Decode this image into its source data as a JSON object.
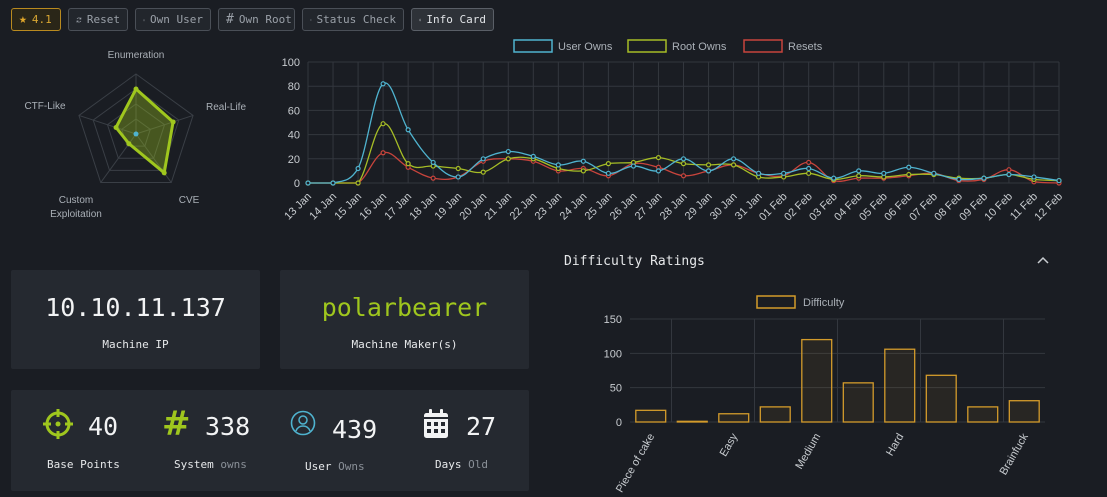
{
  "toolbar": {
    "rating": "4.1",
    "buttons": [
      {
        "label": "Reset",
        "icon": "refresh-icon"
      },
      {
        "label": "Own User",
        "icon": "user-icon"
      },
      {
        "label": "Own Root",
        "icon": "hash-icon"
      },
      {
        "label": "Status Check",
        "icon": "server-icon"
      },
      {
        "label": "Info Card",
        "icon": "info-icon",
        "active": true
      }
    ]
  },
  "radar": {
    "axes": [
      "Enumeration",
      "Real-Life",
      "CVE",
      "Custom Exploitation",
      "CTF-Like"
    ],
    "axis_lines": [
      [
        "Enumeration"
      ],
      [
        "Real-Life"
      ],
      [
        "CVE"
      ],
      [
        "Custom",
        "Exploitation"
      ],
      [
        "CTF-Like"
      ]
    ],
    "values": [
      0.75,
      0.65,
      0.8,
      0.2,
      0.35
    ],
    "color": "#9fc61e"
  },
  "chart_data": [
    {
      "type": "line",
      "legend": [
        "User Owns",
        "Root Owns",
        "Resets"
      ],
      "legend_position": "top",
      "x": [
        "13 Jan",
        "14 Jan",
        "15 Jan",
        "16 Jan",
        "17 Jan",
        "18 Jan",
        "19 Jan",
        "20 Jan",
        "21 Jan",
        "22 Jan",
        "23 Jan",
        "24 Jan",
        "25 Jan",
        "26 Jan",
        "27 Jan",
        "28 Jan",
        "29 Jan",
        "30 Jan",
        "31 Jan",
        "01 Feb",
        "02 Feb",
        "03 Feb",
        "04 Feb",
        "05 Feb",
        "06 Feb",
        "07 Feb",
        "08 Feb",
        "09 Feb",
        "10 Feb",
        "11 Feb",
        "12 Feb"
      ],
      "ylim": [
        0,
        100
      ],
      "yticks": [
        0,
        20,
        40,
        60,
        80,
        100
      ],
      "grid": true,
      "series": [
        {
          "name": "User Owns",
          "color": "#4fb3cf",
          "values": [
            0,
            0,
            12,
            82,
            44,
            17,
            5,
            20,
            26,
            22,
            15,
            18,
            8,
            14,
            10,
            20,
            10,
            20,
            8,
            8,
            12,
            4,
            10,
            8,
            13,
            8,
            3,
            4,
            7,
            5,
            2
          ]
        },
        {
          "name": "Root Owns",
          "color": "#a6bd26",
          "values": [
            0,
            0,
            0,
            49,
            16,
            14,
            12,
            9,
            20,
            20,
            12,
            10,
            16,
            17,
            21,
            16,
            15,
            15,
            5,
            5,
            8,
            3,
            6,
            5,
            7,
            7,
            4,
            4,
            7,
            3,
            2
          ]
        },
        {
          "name": "Resets",
          "color": "#c8443c",
          "values": [
            0,
            0,
            0,
            25,
            13,
            4,
            5,
            18,
            20,
            18,
            10,
            12,
            6,
            16,
            13,
            6,
            10,
            15,
            8,
            6,
            17,
            2,
            4,
            4,
            6,
            8,
            2,
            3,
            11,
            1,
            0
          ]
        }
      ]
    },
    {
      "type": "bar",
      "title": "Difficulty Ratings",
      "legend": [
        "Difficulty"
      ],
      "legend_position": "top",
      "series_name": "Difficulty",
      "color": "#d39b2b",
      "categories": [
        "Piece of cake",
        "",
        "Easy",
        "",
        "Medium",
        "",
        "Hard",
        "",
        "",
        "Brainfuck"
      ],
      "values": [
        17,
        1,
        12,
        22,
        120,
        57,
        106,
        68,
        22,
        31
      ],
      "ylim": [
        0,
        150
      ],
      "yticks": [
        0,
        50,
        100,
        150
      ],
      "grid": true
    }
  ],
  "stats": {
    "ip": "10.10.11.137",
    "ip_label": "Machine IP",
    "maker": "polarbearer",
    "maker_label": "Machine Maker(s)",
    "base_points": "40",
    "base_points_label": "Base Points",
    "system_owns": "338",
    "system_label": "System",
    "system_suffix": "owns",
    "user_owns": "439",
    "user_label": "User",
    "user_suffix": "Owns",
    "days": "27",
    "days_label": "Days",
    "days_suffix": "Old"
  },
  "colors": {
    "green": "#9fc61e",
    "blue": "#4fb3cf",
    "white": "#f2f3f4",
    "orange": "#d39b2b"
  }
}
